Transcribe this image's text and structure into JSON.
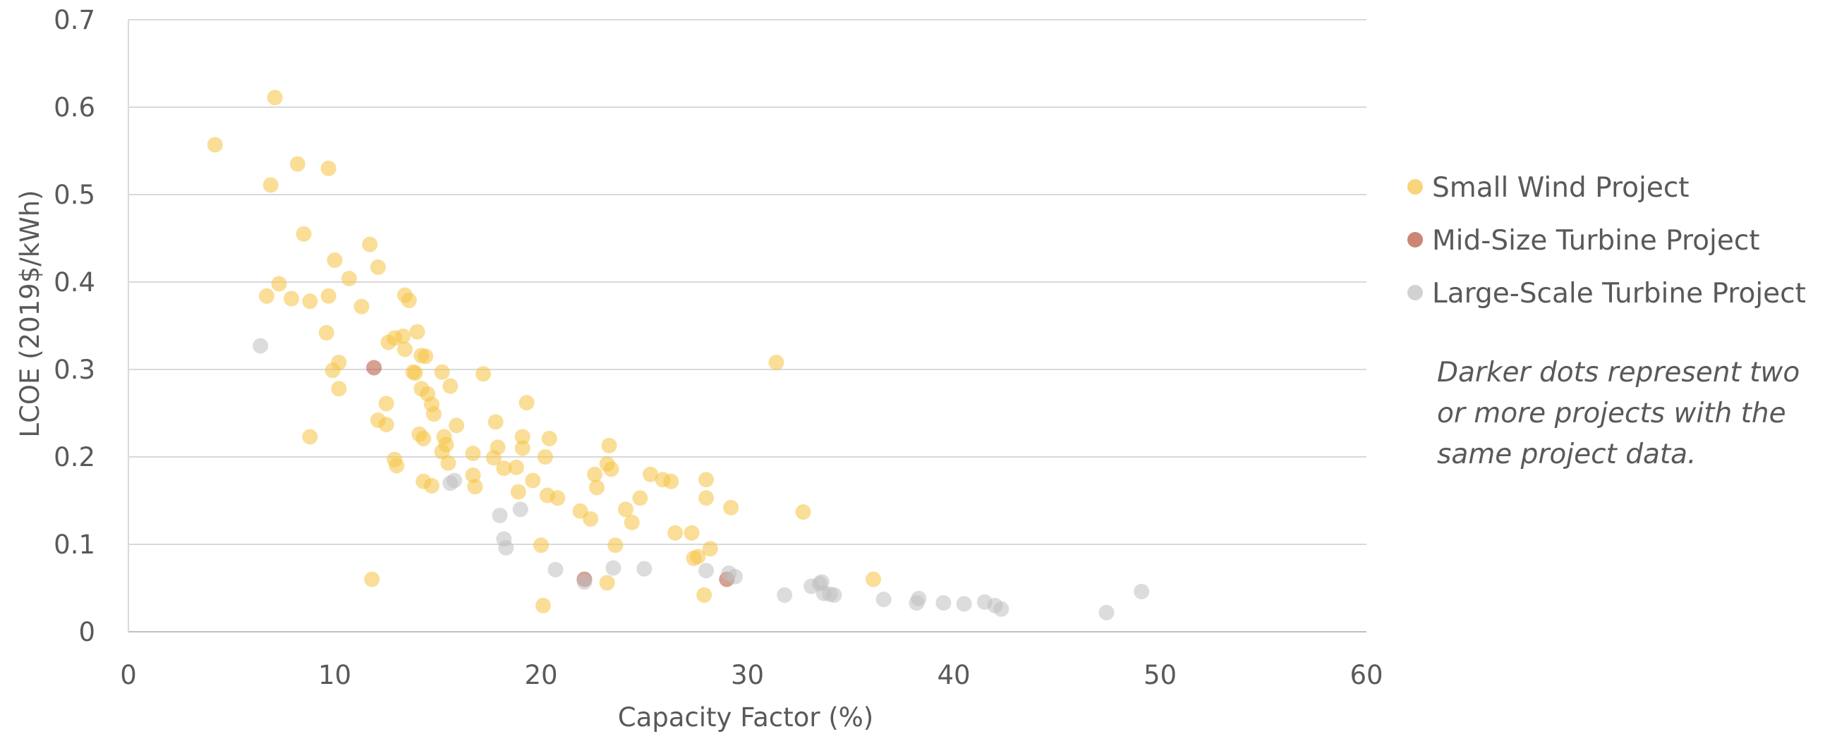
{
  "chart_data": {
    "type": "scatter",
    "xlabel": "Capacity Factor (%)",
    "ylabel": "LCOE (2019$/kWh)",
    "xlim": [
      0,
      60
    ],
    "ylim": [
      0,
      0.7
    ],
    "x_ticks": [
      "0",
      "10",
      "20",
      "30",
      "40",
      "50",
      "60"
    ],
    "y_ticks": [
      "0",
      "0.1",
      "0.2",
      "0.3",
      "0.4",
      "0.5",
      "0.6",
      "0.7"
    ],
    "grid": "horizontal",
    "legend_position": "right",
    "note": [
      "Darker dots represent two",
      "or more projects with the",
      "same project data."
    ],
    "series": [
      {
        "name": "Small Wind Project",
        "color": "#f5c342",
        "points": [
          [
            4.2,
            0.557
          ],
          [
            7.1,
            0.611
          ],
          [
            6.9,
            0.511
          ],
          [
            8.2,
            0.535
          ],
          [
            9.7,
            0.53
          ],
          [
            8.5,
            0.455
          ],
          [
            10.0,
            0.425
          ],
          [
            11.7,
            0.443
          ],
          [
            12.1,
            0.417
          ],
          [
            10.7,
            0.404
          ],
          [
            6.7,
            0.384
          ],
          [
            7.3,
            0.398
          ],
          [
            7.9,
            0.381
          ],
          [
            8.8,
            0.378
          ],
          [
            9.7,
            0.384
          ],
          [
            11.3,
            0.372
          ],
          [
            13.4,
            0.385
          ],
          [
            13.6,
            0.379
          ],
          [
            9.6,
            0.342
          ],
          [
            10.2,
            0.308
          ],
          [
            9.9,
            0.299
          ],
          [
            10.2,
            0.278
          ],
          [
            8.8,
            0.223
          ],
          [
            11.8,
            0.06
          ],
          [
            12.6,
            0.331
          ],
          [
            12.9,
            0.336
          ],
          [
            13.3,
            0.338
          ],
          [
            13.4,
            0.323
          ],
          [
            14.0,
            0.343
          ],
          [
            14.2,
            0.316
          ],
          [
            14.4,
            0.315
          ],
          [
            13.8,
            0.297
          ],
          [
            13.9,
            0.296
          ],
          [
            14.2,
            0.278
          ],
          [
            14.5,
            0.272
          ],
          [
            14.7,
            0.26
          ],
          [
            14.8,
            0.249
          ],
          [
            12.5,
            0.261
          ],
          [
            12.1,
            0.242
          ],
          [
            12.5,
            0.237
          ],
          [
            12.9,
            0.197
          ],
          [
            13.0,
            0.19
          ],
          [
            14.1,
            0.226
          ],
          [
            14.3,
            0.221
          ],
          [
            14.3,
            0.172
          ],
          [
            14.7,
            0.167
          ],
          [
            15.2,
            0.297
          ],
          [
            15.6,
            0.281
          ],
          [
            15.3,
            0.223
          ],
          [
            15.4,
            0.214
          ],
          [
            15.2,
            0.206
          ],
          [
            15.5,
            0.193
          ],
          [
            15.9,
            0.236
          ],
          [
            16.7,
            0.204
          ],
          [
            16.7,
            0.179
          ],
          [
            16.8,
            0.166
          ],
          [
            17.2,
            0.295
          ],
          [
            17.7,
            0.199
          ],
          [
            17.8,
            0.24
          ],
          [
            17.9,
            0.211
          ],
          [
            18.2,
            0.187
          ],
          [
            18.8,
            0.188
          ],
          [
            18.9,
            0.16
          ],
          [
            19.1,
            0.223
          ],
          [
            19.1,
            0.21
          ],
          [
            19.3,
            0.262
          ],
          [
            19.6,
            0.173
          ],
          [
            20.0,
            0.099
          ],
          [
            20.1,
            0.03
          ],
          [
            20.2,
            0.2
          ],
          [
            20.3,
            0.156
          ],
          [
            20.4,
            0.221
          ],
          [
            20.8,
            0.153
          ],
          [
            21.9,
            0.138
          ],
          [
            22.4,
            0.129
          ],
          [
            22.6,
            0.18
          ],
          [
            22.7,
            0.165
          ],
          [
            23.2,
            0.192
          ],
          [
            23.3,
            0.213
          ],
          [
            23.4,
            0.186
          ],
          [
            23.6,
            0.099
          ],
          [
            23.2,
            0.056
          ],
          [
            24.1,
            0.14
          ],
          [
            24.4,
            0.125
          ],
          [
            24.8,
            0.153
          ],
          [
            25.3,
            0.18
          ],
          [
            25.9,
            0.174
          ],
          [
            26.3,
            0.172
          ],
          [
            26.5,
            0.113
          ],
          [
            27.3,
            0.113
          ],
          [
            27.4,
            0.084
          ],
          [
            27.6,
            0.086
          ],
          [
            27.9,
            0.042
          ],
          [
            28.0,
            0.174
          ],
          [
            28.0,
            0.153
          ],
          [
            28.2,
            0.095
          ],
          [
            29.2,
            0.142
          ],
          [
            31.4,
            0.308
          ],
          [
            32.7,
            0.137
          ],
          [
            36.1,
            0.06
          ]
        ]
      },
      {
        "name": "Mid-Size Turbine Project",
        "color": "#b5523b",
        "points": [
          [
            11.9,
            0.302
          ],
          [
            22.1,
            0.06
          ],
          [
            29.0,
            0.06
          ]
        ]
      },
      {
        "name": "Large-Scale Turbine Project",
        "color": "#bfbfbf",
        "points": [
          [
            6.4,
            0.327
          ],
          [
            15.6,
            0.17
          ],
          [
            15.8,
            0.173
          ],
          [
            18.0,
            0.133
          ],
          [
            18.2,
            0.106
          ],
          [
            18.3,
            0.096
          ],
          [
            19.0,
            0.14
          ],
          [
            20.7,
            0.071
          ],
          [
            22.1,
            0.057
          ],
          [
            23.5,
            0.073
          ],
          [
            25.0,
            0.072
          ],
          [
            28.0,
            0.07
          ],
          [
            29.1,
            0.067
          ],
          [
            29.4,
            0.063
          ],
          [
            31.8,
            0.042
          ],
          [
            33.1,
            0.052
          ],
          [
            33.5,
            0.055
          ],
          [
            33.6,
            0.057
          ],
          [
            33.7,
            0.044
          ],
          [
            34.0,
            0.043
          ],
          [
            34.2,
            0.042
          ],
          [
            36.6,
            0.037
          ],
          [
            38.2,
            0.033
          ],
          [
            38.3,
            0.038
          ],
          [
            39.5,
            0.033
          ],
          [
            40.5,
            0.032
          ],
          [
            41.5,
            0.034
          ],
          [
            42.0,
            0.03
          ],
          [
            42.3,
            0.026
          ],
          [
            47.4,
            0.022
          ],
          [
            49.1,
            0.046
          ]
        ]
      }
    ]
  }
}
